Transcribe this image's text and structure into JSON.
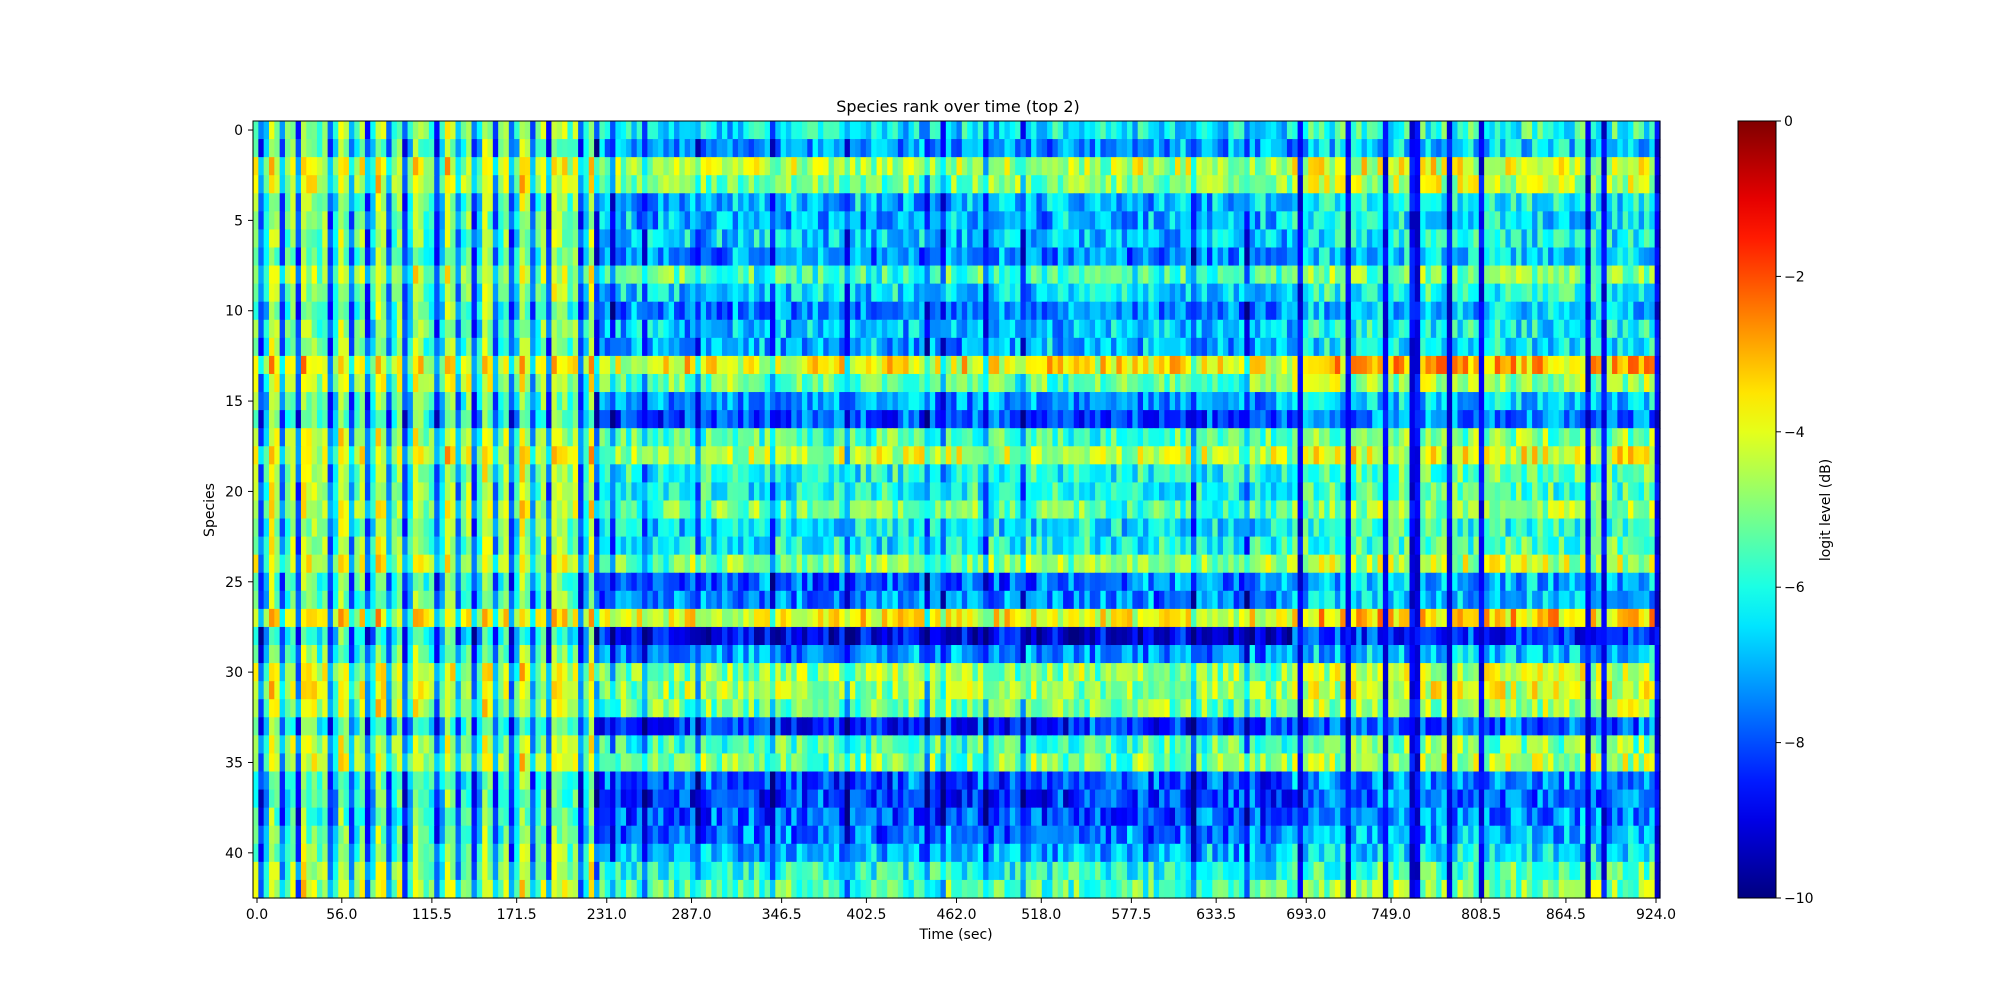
{
  "chart_data": {
    "type": "heatmap",
    "title": "Species rank over time (top 2)",
    "xlabel": "Time (sec)",
    "ylabel": "Species",
    "x_tick_labels": [
      "0.0",
      "56.0",
      "115.5",
      "171.5",
      "231.0",
      "287.0",
      "346.5",
      "402.5",
      "462.0",
      "518.0",
      "577.5",
      "633.5",
      "693.0",
      "749.0",
      "808.5",
      "864.5",
      "924.0"
    ],
    "x_tick_values": [
      0.0,
      56.0,
      115.5,
      171.5,
      231.0,
      287.0,
      346.5,
      402.5,
      462.0,
      518.0,
      577.5,
      633.5,
      693.0,
      749.0,
      808.5,
      864.5,
      924.0
    ],
    "y_tick_labels": [
      "0",
      "5",
      "10",
      "15",
      "20",
      "25",
      "30",
      "35",
      "40"
    ],
    "y_tick_values": [
      0,
      5,
      10,
      15,
      20,
      25,
      30,
      35,
      40
    ],
    "xlim": [
      0,
      924
    ],
    "n_species": 43,
    "n_time_bins": 264,
    "colormap": "jet",
    "vmin": -10,
    "vmax": 0,
    "colorbar": {
      "label": "logit level (dB)",
      "tick_labels": [
        "0",
        "−2",
        "−4",
        "−6",
        "−8",
        "−10"
      ],
      "tick_values": [
        0,
        -2,
        -4,
        -6,
        -8,
        -10
      ]
    },
    "species_mean_level_dB": [
      -6.4,
      -7.2,
      -4.6,
      -5.0,
      -6.9,
      -7.0,
      -6.8,
      -7.3,
      -5.6,
      -6.6,
      -7.4,
      -6.8,
      -7.0,
      -3.8,
      -5.3,
      -7.2,
      -8.1,
      -5.6,
      -4.5,
      -6.0,
      -6.2,
      -5.4,
      -6.5,
      -6.1,
      -5.0,
      -7.6,
      -7.4,
      -3.9,
      -8.9,
      -7.4,
      -4.9,
      -4.8,
      -5.2,
      -8.3,
      -5.6,
      -5.1,
      -7.9,
      -8.2,
      -8.0,
      -7.6,
      -7.0,
      -6.0,
      -5.5
    ],
    "time_regimes": [
      {
        "start_sec": 0.0,
        "end_sec": 224.0,
        "pattern": "alternating bright / dark columns"
      },
      {
        "start_sec": 224.0,
        "end_sec": 682.0,
        "pattern": "horizontal species bands"
      },
      {
        "start_sec": 682.0,
        "end_sec": 924.0,
        "pattern": "mixed, periodic dark columns"
      }
    ]
  }
}
